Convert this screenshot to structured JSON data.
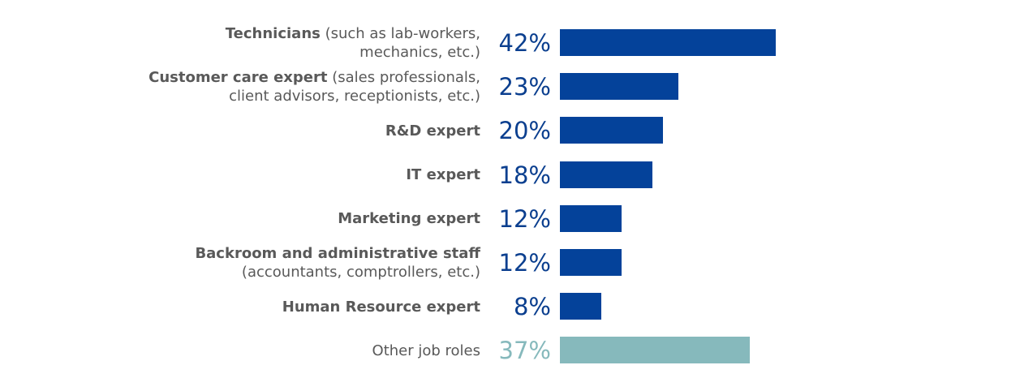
{
  "chart_data": {
    "type": "bar",
    "orientation": "horizontal",
    "categories": [
      {
        "bold": "Technicians",
        "rest": " (such as lab-workers,",
        "line2": "mechanics, etc.)"
      },
      {
        "bold": "Customer care expert",
        "rest": " (sales professionals,",
        "line2": "client advisors, receptionists, etc.)"
      },
      {
        "bold": "R&D expert",
        "rest": "",
        "line2": ""
      },
      {
        "bold": "IT expert",
        "rest": "",
        "line2": ""
      },
      {
        "bold": "Marketing expert",
        "rest": "",
        "line2": ""
      },
      {
        "bold": "Backroom and administrative staff",
        "rest": "",
        "line2": "(accountants, comptrollers, etc.)"
      },
      {
        "bold": "Human Resource expert",
        "rest": "",
        "line2": ""
      },
      {
        "bold": "",
        "rest": "Other job roles",
        "line2": ""
      }
    ],
    "values": [
      42,
      23,
      20,
      18,
      12,
      12,
      8,
      37
    ],
    "value_labels": [
      "42%",
      "23%",
      "20%",
      "18%",
      "12%",
      "12%",
      "8%",
      "37%"
    ],
    "highlight_last": true,
    "colors": {
      "primary": "#04429a",
      "other": "#86b9bc",
      "value_text": "#0b3f8f",
      "label_text": "#595959"
    },
    "title": "",
    "xlabel": "",
    "ylabel": ""
  }
}
